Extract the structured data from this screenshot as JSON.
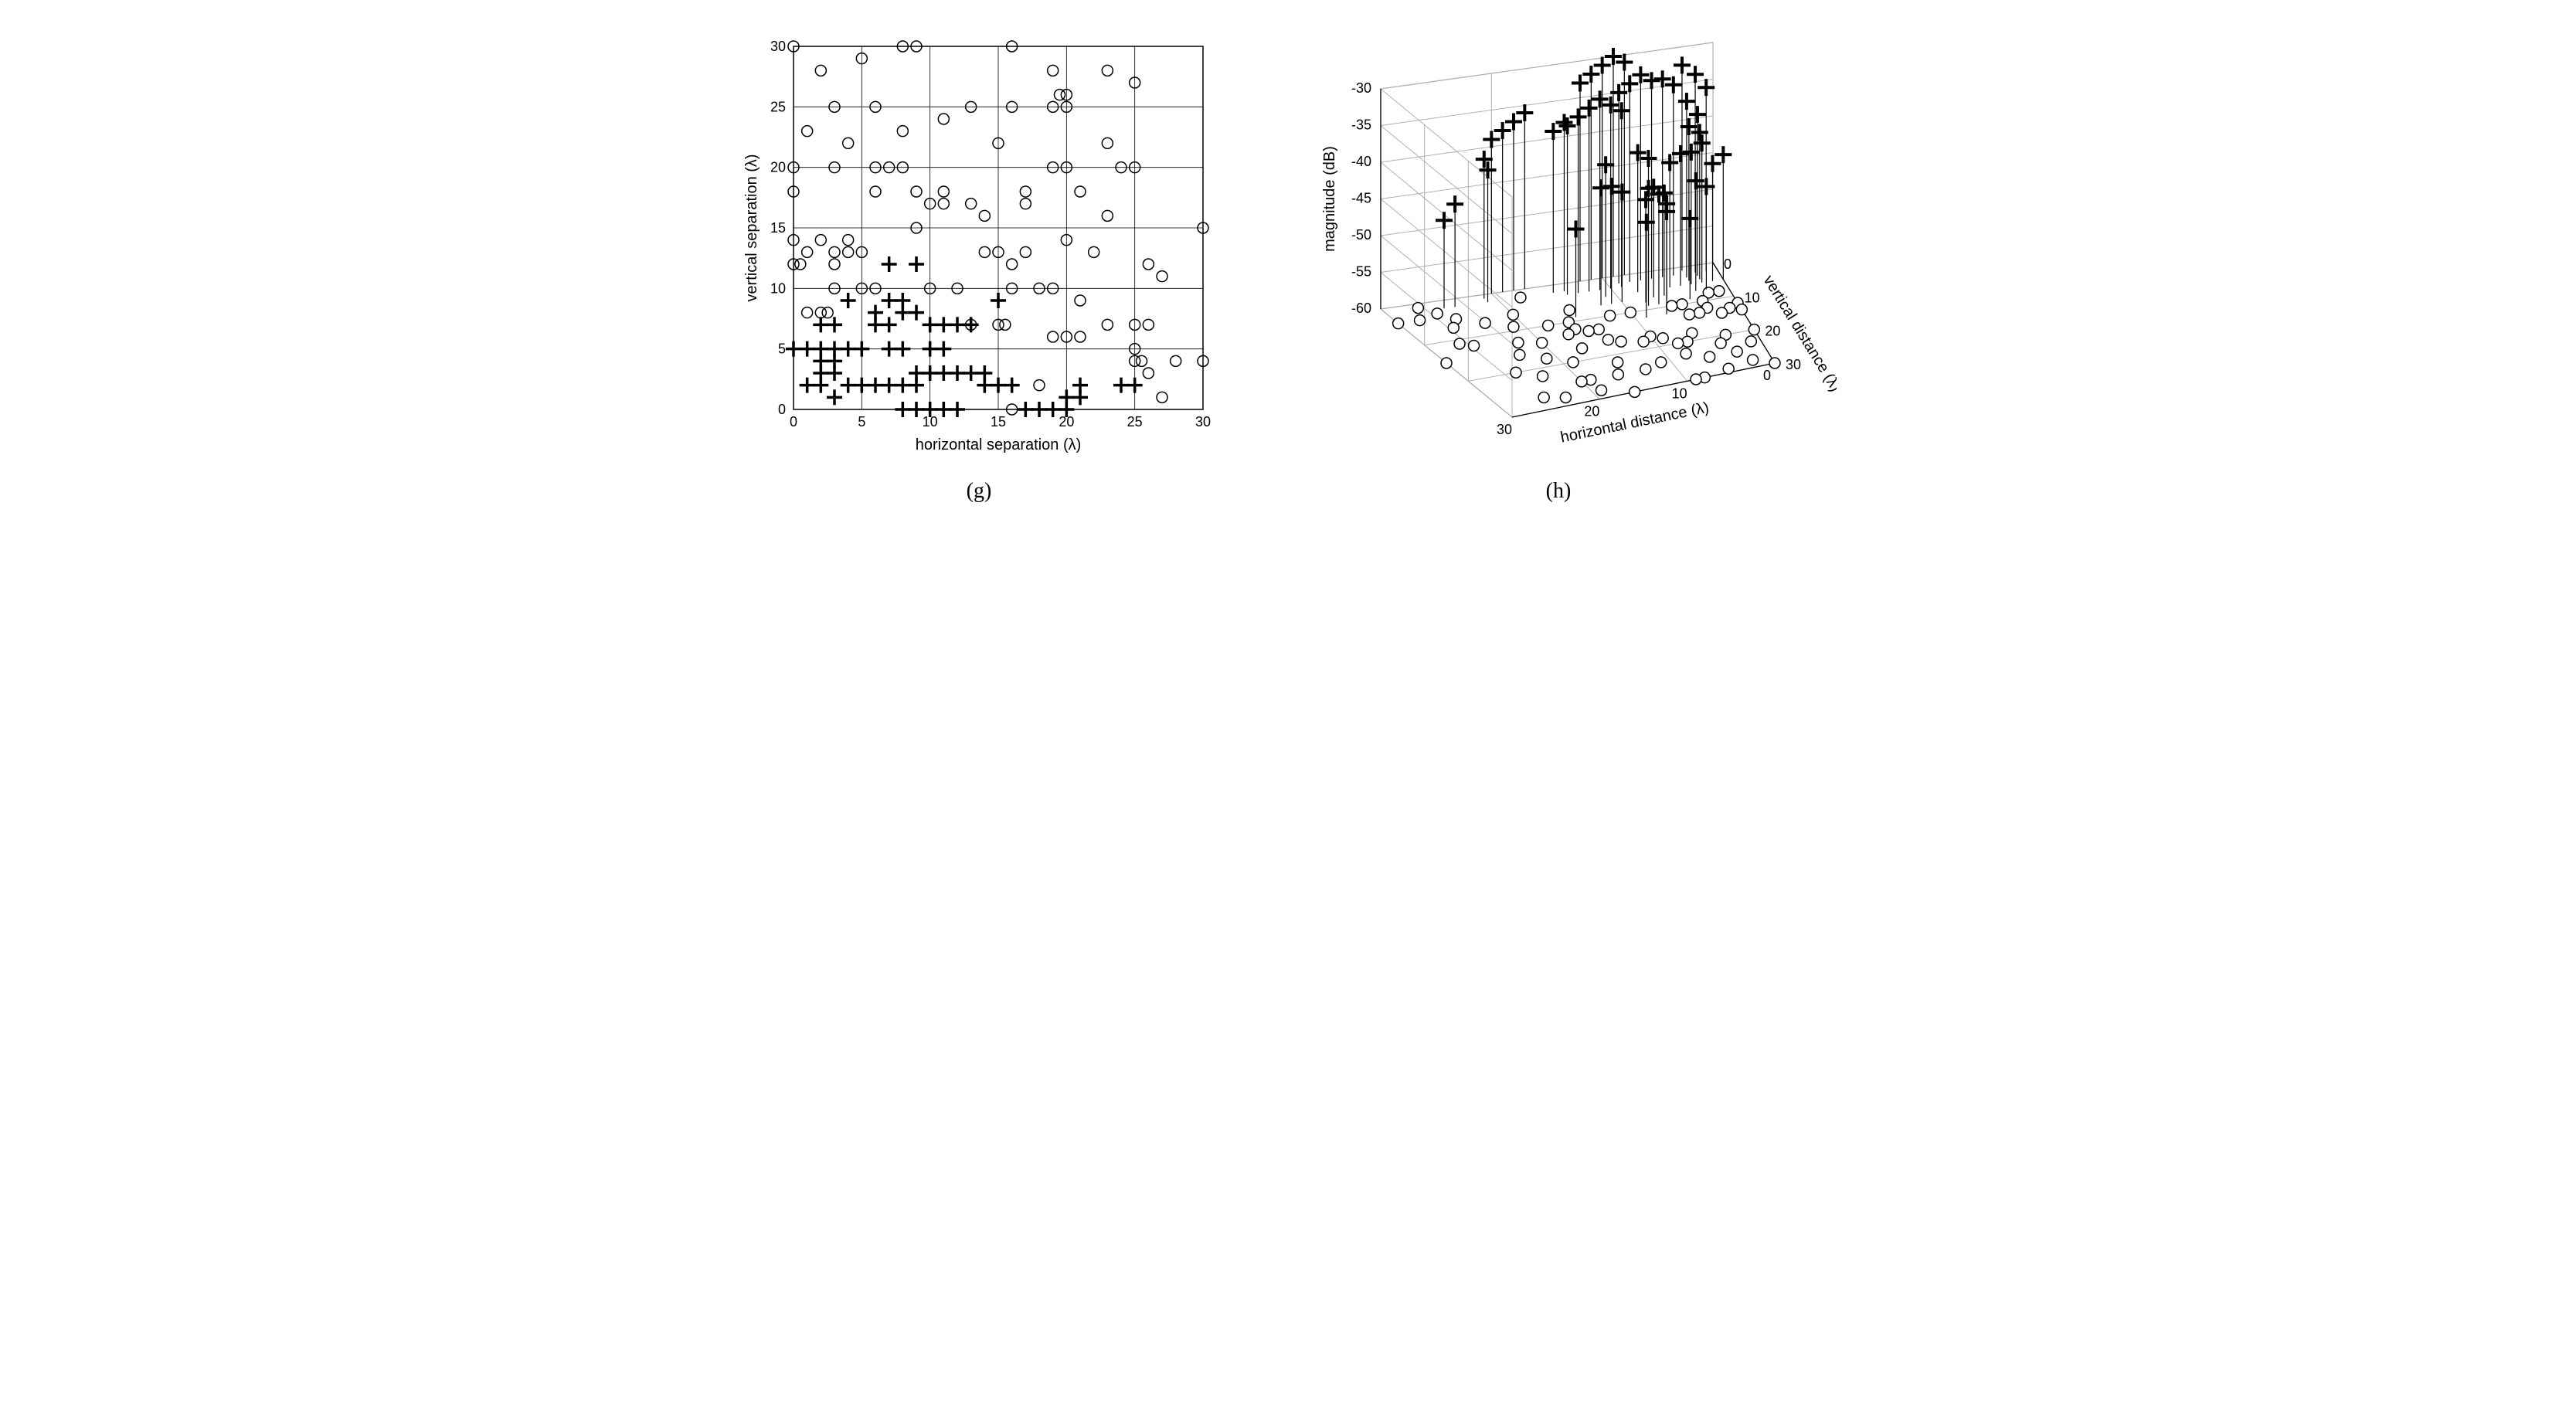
{
  "panel_g": {
    "type": "scatter",
    "caption": "(g)",
    "xlabel": "horizontal separation (λ)",
    "ylabel": "vertical separation (λ)",
    "xlim": [
      0,
      30
    ],
    "ylim": [
      0,
      30
    ],
    "xtick_step": 5,
    "ytick_step": 5,
    "background_color": "#ffffff",
    "grid_color": "#000000",
    "axis_color": "#000000",
    "label_fontsize": 20,
    "tick_fontsize": 18,
    "circle_marker": {
      "type": "open_circle",
      "size": 7,
      "stroke": "#000000",
      "fill": "none",
      "stroke_width": 1.5
    },
    "plus_marker": {
      "type": "bold_plus",
      "size": 10,
      "color": "#000000",
      "weight": 3.5
    },
    "circles": [
      [
        0,
        30
      ],
      [
        2,
        28
      ],
      [
        5,
        29
      ],
      [
        8,
        30
      ],
      [
        9,
        30
      ],
      [
        16,
        30
      ],
      [
        19,
        28
      ],
      [
        23,
        28
      ],
      [
        25,
        27
      ],
      [
        1,
        23
      ],
      [
        3,
        25
      ],
      [
        4,
        22
      ],
      [
        6,
        25
      ],
      [
        11,
        24
      ],
      [
        11,
        18
      ],
      [
        13,
        25
      ],
      [
        15,
        22
      ],
      [
        16,
        25
      ],
      [
        19,
        25
      ],
      [
        20,
        25
      ],
      [
        19.5,
        26
      ],
      [
        20,
        26
      ],
      [
        23,
        22
      ],
      [
        0,
        20
      ],
      [
        3,
        20
      ],
      [
        6,
        18
      ],
      [
        6,
        20
      ],
      [
        7,
        20
      ],
      [
        8,
        20
      ],
      [
        9,
        18
      ],
      [
        9,
        15
      ],
      [
        10,
        17
      ],
      [
        11,
        17
      ],
      [
        13,
        17
      ],
      [
        14,
        16
      ],
      [
        17,
        17
      ],
      [
        17,
        18
      ],
      [
        19,
        20
      ],
      [
        20,
        20
      ],
      [
        21,
        18
      ],
      [
        23,
        16
      ],
      [
        24,
        20
      ],
      [
        25,
        20
      ],
      [
        0,
        18
      ],
      [
        0,
        14
      ],
      [
        1,
        13
      ],
      [
        0,
        12
      ],
      [
        0.5,
        12
      ],
      [
        2,
        14
      ],
      [
        3,
        12
      ],
      [
        3,
        13
      ],
      [
        3,
        10
      ],
      [
        4,
        13
      ],
      [
        4,
        14
      ],
      [
        5,
        13
      ],
      [
        6,
        10
      ],
      [
        14,
        13
      ],
      [
        15,
        13
      ],
      [
        16,
        12
      ],
      [
        17,
        13
      ],
      [
        20,
        14
      ],
      [
        22,
        13
      ],
      [
        26,
        12
      ],
      [
        27,
        11
      ],
      [
        30,
        15
      ],
      [
        1,
        8
      ],
      [
        2,
        8
      ],
      [
        2.5,
        8
      ],
      [
        5,
        10
      ],
      [
        10,
        10
      ],
      [
        12,
        10
      ],
      [
        16,
        10
      ],
      [
        18,
        10
      ],
      [
        19,
        10
      ],
      [
        21,
        9
      ],
      [
        23,
        7
      ],
      [
        25,
        5
      ],
      [
        25,
        7
      ],
      [
        26,
        7
      ],
      [
        25.5,
        4
      ],
      [
        25,
        4
      ],
      [
        26,
        3
      ],
      [
        28,
        4
      ],
      [
        30,
        4
      ],
      [
        13,
        7
      ],
      [
        15,
        7
      ],
      [
        15.5,
        7
      ],
      [
        18,
        2
      ],
      [
        19,
        6
      ],
      [
        20,
        6
      ],
      [
        21,
        6
      ],
      [
        27,
        1
      ],
      [
        16,
        0
      ],
      [
        8,
        23
      ]
    ],
    "pluses": [
      [
        7,
        12
      ],
      [
        9,
        12
      ],
      [
        7,
        9
      ],
      [
        8,
        9
      ],
      [
        4,
        9
      ],
      [
        3,
        7
      ],
      [
        2,
        7
      ],
      [
        3,
        5
      ],
      [
        1,
        5
      ],
      [
        2,
        5
      ],
      [
        0,
        5
      ],
      [
        2,
        3
      ],
      [
        3,
        3
      ],
      [
        2,
        4
      ],
      [
        3,
        4
      ],
      [
        1,
        2
      ],
      [
        2,
        2
      ],
      [
        3,
        1
      ],
      [
        4,
        5
      ],
      [
        5,
        5
      ],
      [
        6,
        7
      ],
      [
        6,
        8
      ],
      [
        7,
        7
      ],
      [
        7,
        5
      ],
      [
        8,
        5
      ],
      [
        8,
        8
      ],
      [
        9,
        8
      ],
      [
        10,
        7
      ],
      [
        10,
        5
      ],
      [
        11,
        7
      ],
      [
        12,
        7
      ],
      [
        13,
        7
      ],
      [
        11,
        5
      ],
      [
        9,
        3
      ],
      [
        10,
        3
      ],
      [
        11,
        3
      ],
      [
        12,
        3
      ],
      [
        13,
        3
      ],
      [
        14,
        3
      ],
      [
        4,
        2
      ],
      [
        5,
        2
      ],
      [
        6,
        2
      ],
      [
        7,
        2
      ],
      [
        8,
        2
      ],
      [
        9,
        2
      ],
      [
        8,
        0
      ],
      [
        9,
        0
      ],
      [
        10,
        0
      ],
      [
        11,
        0
      ],
      [
        12,
        0
      ],
      [
        14,
        2
      ],
      [
        15,
        2
      ],
      [
        15,
        9
      ],
      [
        16,
        2
      ],
      [
        17,
        0
      ],
      [
        18,
        0
      ],
      [
        19,
        0
      ],
      [
        20,
        0
      ],
      [
        20,
        1
      ],
      [
        21,
        1
      ],
      [
        21,
        2
      ],
      [
        24,
        2
      ],
      [
        25,
        2
      ]
    ]
  },
  "panel_h": {
    "type": "stem3d",
    "caption": "(h)",
    "xlabel": "horizontal distance (λ)",
    "ylabel": "vertical distance (λ)",
    "zlabel": "magnitude (dB)",
    "xlim": [
      0,
      30
    ],
    "ylim": [
      0,
      30
    ],
    "zlim": [
      -60,
      -30
    ],
    "xtick_step": 10,
    "ytick_step": 10,
    "ztick_step": 5,
    "background_color": "#ffffff",
    "grid_color": "#b0b0b0",
    "axis_color": "#000000",
    "label_fontsize": 20,
    "tick_fontsize": 18,
    "circle_marker": {
      "type": "open_circle",
      "size": 7,
      "stroke": "#000000",
      "fill": "none",
      "stroke_width": 1.5
    },
    "plus_marker": {
      "type": "bold_plus",
      "size": 11,
      "color": "#000000",
      "weight": 4
    },
    "stem_color": "#000000",
    "stem_width": 1.2,
    "circles": [
      [
        0,
        30,
        -60
      ],
      [
        2,
        28,
        -60
      ],
      [
        5,
        29,
        -60
      ],
      [
        8,
        30,
        -60
      ],
      [
        9,
        30,
        -60
      ],
      [
        16,
        30,
        -60
      ],
      [
        19,
        28,
        -60
      ],
      [
        23,
        28,
        -60
      ],
      [
        25,
        27,
        -60
      ],
      [
        1,
        23,
        -60
      ],
      [
        3,
        25,
        -60
      ],
      [
        4,
        22,
        -60
      ],
      [
        6,
        25,
        -60
      ],
      [
        11,
        24,
        -60
      ],
      [
        13,
        25,
        -60
      ],
      [
        15,
        22,
        -60
      ],
      [
        16,
        25,
        -60
      ],
      [
        19,
        25,
        -60
      ],
      [
        20,
        25,
        -60
      ],
      [
        23,
        22,
        -60
      ],
      [
        0,
        20,
        -60
      ],
      [
        3,
        20,
        -60
      ],
      [
        6,
        18,
        -60
      ],
      [
        7,
        20,
        -60
      ],
      [
        8,
        20,
        -60
      ],
      [
        9,
        18,
        -60
      ],
      [
        10,
        17,
        -60
      ],
      [
        13,
        17,
        -60
      ],
      [
        14,
        16,
        -60
      ],
      [
        17,
        17,
        -60
      ],
      [
        19,
        20,
        -60
      ],
      [
        21,
        18,
        -60
      ],
      [
        23,
        16,
        -60
      ],
      [
        25,
        20,
        -60
      ],
      [
        0,
        14,
        -60
      ],
      [
        1,
        13,
        -60
      ],
      [
        0,
        12,
        -60
      ],
      [
        2,
        14,
        -60
      ],
      [
        3,
        12,
        -60
      ],
      [
        3,
        10,
        -60
      ],
      [
        4,
        13,
        -60
      ],
      [
        5,
        13,
        -60
      ],
      [
        14,
        13,
        -60
      ],
      [
        15,
        13,
        -60
      ],
      [
        16,
        12,
        -60
      ],
      [
        17,
        13,
        -60
      ],
      [
        20,
        14,
        -60
      ],
      [
        22,
        13,
        -60
      ],
      [
        26,
        12,
        -60
      ],
      [
        27,
        11,
        -60
      ],
      [
        30,
        15,
        -60
      ],
      [
        1,
        8,
        -60
      ],
      [
        2,
        8,
        -60
      ],
      [
        5,
        10,
        -60
      ],
      [
        10,
        10,
        -60
      ],
      [
        12,
        10,
        -60
      ],
      [
        16,
        10,
        -60
      ],
      [
        18,
        10,
        -60
      ],
      [
        21,
        9,
        -60
      ],
      [
        23,
        7,
        -60
      ],
      [
        25,
        5,
        -60
      ],
      [
        26,
        7,
        -60
      ],
      [
        26,
        3,
        -60
      ],
      [
        28,
        4,
        -60
      ],
      [
        30,
        4,
        -60
      ],
      [
        15,
        7,
        -60
      ],
      [
        18,
        2,
        -60
      ],
      [
        20,
        6,
        -60
      ],
      [
        27,
        1,
        -60
      ],
      [
        8,
        23,
        -60
      ],
      [
        11,
        18,
        -60
      ],
      [
        6,
        10,
        -60
      ]
    ],
    "stems": [
      [
        7,
        12,
        -46
      ],
      [
        9,
        12,
        -47
      ],
      [
        7,
        9,
        -45
      ],
      [
        8,
        9,
        -44
      ],
      [
        4,
        9,
        -49
      ],
      [
        3,
        7,
        -45
      ],
      [
        2,
        7,
        -46
      ],
      [
        3,
        5,
        -42
      ],
      [
        1,
        5,
        -44
      ],
      [
        2,
        5,
        -41
      ],
      [
        0,
        5,
        -43
      ],
      [
        2,
        3,
        -38
      ],
      [
        3,
        3,
        -36
      ],
      [
        2,
        4,
        -40
      ],
      [
        3,
        4,
        -39
      ],
      [
        1,
        2,
        -35
      ],
      [
        2,
        2,
        -33
      ],
      [
        3,
        1,
        -32
      ],
      [
        4,
        5,
        -42
      ],
      [
        5,
        5,
        -43
      ],
      [
        6,
        7,
        -46
      ],
      [
        6,
        8,
        -47
      ],
      [
        7,
        7,
        -45
      ],
      [
        7,
        5,
        -42
      ],
      [
        8,
        5,
        -41
      ],
      [
        8,
        8,
        -46
      ],
      [
        10,
        7,
        -45
      ],
      [
        11,
        7,
        -44
      ],
      [
        12,
        7,
        -44
      ],
      [
        11,
        5,
        -42
      ],
      [
        9,
        3,
        -36
      ],
      [
        10,
        3,
        -35
      ],
      [
        11,
        3,
        -34
      ],
      [
        12,
        3,
        -35
      ],
      [
        13,
        3,
        -36
      ],
      [
        14,
        3,
        -37
      ],
      [
        4,
        2,
        -34
      ],
      [
        5,
        2,
        -33
      ],
      [
        6,
        2,
        -33
      ],
      [
        7,
        2,
        -32
      ],
      [
        8,
        2,
        -33
      ],
      [
        9,
        2,
        -34
      ],
      [
        8,
        0,
        -31
      ],
      [
        9,
        0,
        -30
      ],
      [
        10,
        0,
        -31
      ],
      [
        11,
        0,
        -32
      ],
      [
        12,
        0,
        -33
      ],
      [
        14,
        2,
        -37
      ],
      [
        15,
        2,
        -38
      ],
      [
        15,
        9,
        -48
      ],
      [
        17,
        0,
        -36
      ],
      [
        18,
        0,
        -37
      ],
      [
        19,
        0,
        -38
      ],
      [
        20,
        0,
        -39
      ],
      [
        21,
        1,
        -41
      ],
      [
        21,
        2,
        -42
      ],
      [
        24,
        2,
        -46
      ],
      [
        25,
        2,
        -48
      ]
    ]
  }
}
